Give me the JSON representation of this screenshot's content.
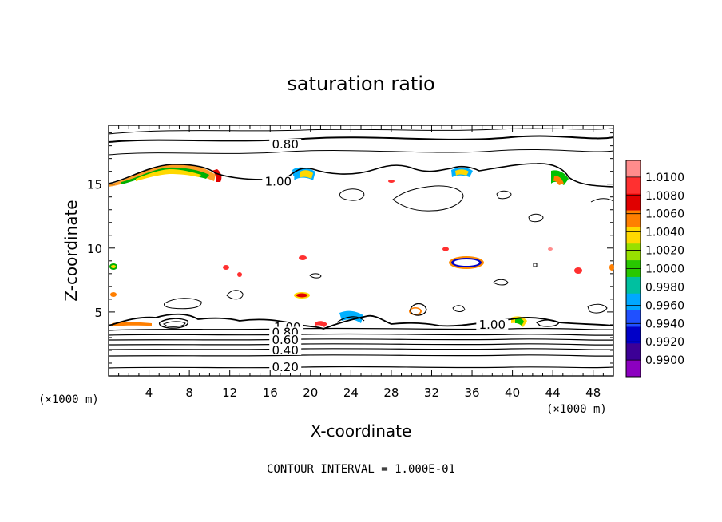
{
  "chart_data": {
    "type": "contour",
    "title": "saturation ratio",
    "xlabel": "X-coordinate",
    "ylabel": "Z-coordinate",
    "x_unit": "(×1000 m)",
    "y_unit": "(×1000 m)",
    "xlim": [
      0,
      50
    ],
    "ylim": [
      0,
      19.6
    ],
    "x_ticks": [
      4,
      8,
      12,
      16,
      20,
      24,
      28,
      32,
      36,
      40,
      44,
      48
    ],
    "y_ticks": [
      5,
      10,
      15
    ],
    "contour_labels": [
      {
        "text": "0.80",
        "x": 17.5,
        "z": 18.1
      },
      {
        "text": "1.00",
        "x": 16.8,
        "z": 15.2
      },
      {
        "text": "1.00",
        "x": 38.0,
        "z": 4.0
      },
      {
        "text": "1.00",
        "x": 17.7,
        "z": 3.8
      },
      {
        "text": "0.80",
        "x": 17.5,
        "z": 3.4
      },
      {
        "text": "0.60",
        "x": 17.5,
        "z": 2.8
      },
      {
        "text": "0.40",
        "x": 17.5,
        "z": 2.0
      },
      {
        "text": "0.20",
        "x": 17.5,
        "z": 0.7
      }
    ],
    "contour_interval_text": "CONTOUR INTERVAL = 1.000E-01",
    "colorbar": {
      "labels": [
        "1.0100",
        "1.0080",
        "1.0060",
        "1.0040",
        "1.0020",
        "1.0000",
        "0.9980",
        "0.9960",
        "0.9940",
        "0.9920",
        "0.9900"
      ],
      "colors": [
        "#ff8c8c",
        "#ff3030",
        "#e00000",
        "#ff7f00",
        "#ffd800",
        "#98e000",
        "#28c800",
        "#00c0a0",
        "#00a8ff",
        "#2050ff",
        "#0000c8",
        "#3c0096",
        "#8c00c0"
      ]
    }
  }
}
